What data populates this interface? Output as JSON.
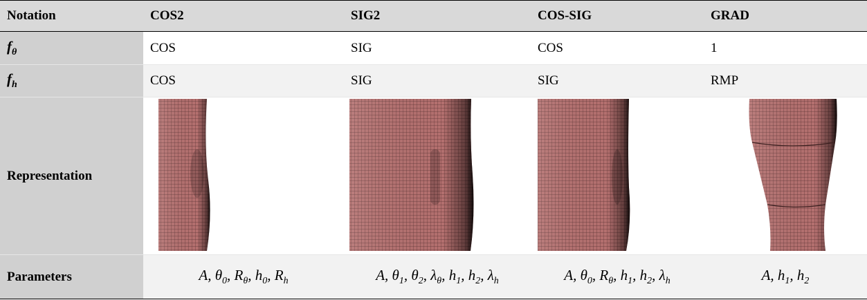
{
  "table": {
    "header": [
      "Notation",
      "COS2",
      "SIG2",
      "COS-SIG",
      "GRAD"
    ],
    "rows": [
      {
        "label": [
          "f",
          {
            "sub": "θ"
          }
        ],
        "cells": [
          "COS",
          "SIG",
          "COS",
          "1"
        ]
      },
      {
        "label": [
          "f",
          {
            "sub": "h"
          }
        ],
        "cells": [
          "COS",
          "SIG",
          "SIG",
          "RMP"
        ]
      },
      {
        "label": "Representation"
      },
      {
        "label": "Parameters",
        "cells": [
          [
            "A, θ",
            {
              "sub": "0"
            },
            ", R",
            {
              "sub": "θ"
            },
            ", h",
            {
              "sub": "0"
            },
            ", R",
            {
              "sub": "h"
            }
          ],
          [
            "A, θ",
            {
              "sub": "1"
            },
            ", θ",
            {
              "sub": "2"
            },
            ", λ",
            {
              "sub": "θ"
            },
            ", h",
            {
              "sub": "1"
            },
            ", h",
            {
              "sub": "2"
            },
            ", λ",
            {
              "sub": "h"
            }
          ],
          [
            "A, θ",
            {
              "sub": "0"
            },
            ", R",
            {
              "sub": "θ"
            },
            ", h",
            {
              "sub": "1"
            },
            ", h",
            {
              "sub": "2"
            },
            ", λ",
            {
              "sub": "h"
            }
          ],
          [
            "A, h",
            {
              "sub": "1"
            },
            ", h",
            {
              "sub": "2"
            }
          ]
        ]
      }
    ]
  }
}
